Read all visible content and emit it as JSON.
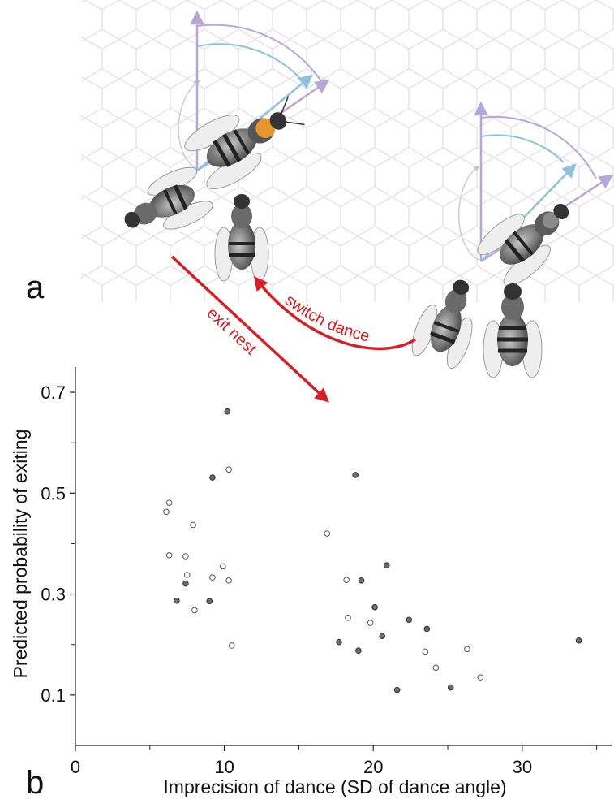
{
  "panel_labels": {
    "a": "a",
    "b": "b"
  },
  "illustration": {
    "arrow_labels": {
      "exit": "exit nest",
      "switch": "switch dance"
    },
    "arrow_color": "#d42027",
    "vertical_ray_color": "#b7a6d9",
    "dance_ray_color": "#8fc1df",
    "highlight_bee_color": "#e8952f"
  },
  "chart_data": {
    "type": "scatter",
    "xlabel": "Imprecision of dance (SD of dance angle)",
    "ylabel": "Predicted probability of exiting",
    "xlim": [
      0,
      36
    ],
    "ylim": [
      0,
      0.75
    ],
    "x_ticks": [
      0,
      10,
      20,
      30
    ],
    "x_tick_labels": [
      "0",
      "10",
      "20",
      "30"
    ],
    "x_minor_ticks": [
      5,
      15,
      25,
      35
    ],
    "y_ticks": [
      0.1,
      0.3,
      0.5,
      0.7
    ],
    "y_tick_labels": [
      "0.1",
      "0.3",
      "0.5",
      "0.7"
    ],
    "y_minor_ticks": [
      0.2,
      0.4,
      0.6
    ],
    "grid": false,
    "series": [
      {
        "marker": "filled",
        "color": "#6d6d6d",
        "points": [
          [
            10.2,
            0.662
          ],
          [
            9.2,
            0.531
          ],
          [
            7.4,
            0.321
          ],
          [
            6.8,
            0.287
          ],
          [
            9.0,
            0.286
          ],
          [
            18.8,
            0.536
          ],
          [
            20.9,
            0.357
          ],
          [
            19.2,
            0.327
          ],
          [
            20.1,
            0.274
          ],
          [
            22.4,
            0.249
          ],
          [
            23.6,
            0.231
          ],
          [
            20.6,
            0.217
          ],
          [
            17.7,
            0.205
          ],
          [
            19.0,
            0.188
          ],
          [
            21.6,
            0.11
          ],
          [
            25.2,
            0.115
          ],
          [
            33.8,
            0.208
          ]
        ]
      },
      {
        "marker": "open",
        "color": "#555555",
        "points": [
          [
            10.3,
            0.547
          ],
          [
            6.3,
            0.481
          ],
          [
            6.1,
            0.463
          ],
          [
            7.9,
            0.437
          ],
          [
            6.3,
            0.377
          ],
          [
            7.4,
            0.375
          ],
          [
            9.9,
            0.355
          ],
          [
            7.5,
            0.338
          ],
          [
            9.2,
            0.333
          ],
          [
            10.3,
            0.327
          ],
          [
            8.0,
            0.268
          ],
          [
            10.5,
            0.198
          ],
          [
            16.9,
            0.42
          ],
          [
            18.2,
            0.328
          ],
          [
            18.3,
            0.253
          ],
          [
            19.8,
            0.243
          ],
          [
            23.5,
            0.186
          ],
          [
            26.3,
            0.191
          ],
          [
            24.2,
            0.154
          ],
          [
            27.2,
            0.135
          ]
        ]
      }
    ]
  }
}
